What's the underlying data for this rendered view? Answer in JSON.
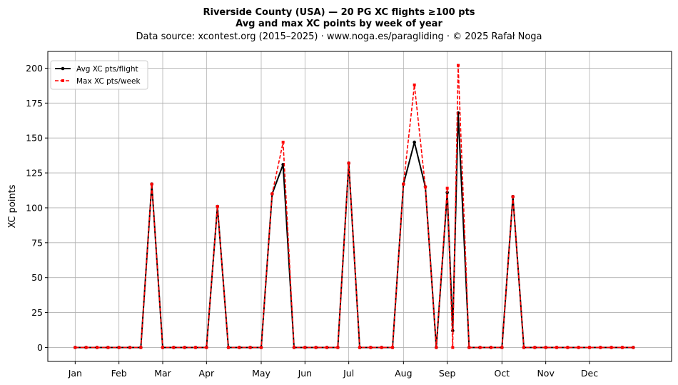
{
  "chart_data": {
    "type": "line",
    "title": "Riverside County (USA)  —  20 PG XC flights ≥100 pts",
    "subtitle": "Avg and max XC points by week of year",
    "source_note": "Data source: xcontest.org (2015–2025)  ·  www.noga.es/paragliding  ·  © 2025 Rafał Noga",
    "xlabel": "",
    "ylabel": "XC points",
    "ylim": [
      -10,
      212
    ],
    "xlim": [
      -2.5,
      54.5
    ],
    "yticks": [
      0,
      25,
      50,
      75,
      100,
      125,
      150,
      175,
      200
    ],
    "month_ticks": [
      {
        "label": "Jan",
        "week": 0
      },
      {
        "label": "Feb",
        "week": 4
      },
      {
        "label": "Mar",
        "week": 8
      },
      {
        "label": "Apr",
        "week": 12
      },
      {
        "label": "May",
        "week": 17
      },
      {
        "label": "Jun",
        "week": 21
      },
      {
        "label": "Jul",
        "week": 25
      },
      {
        "label": "Aug",
        "week": 30
      },
      {
        "label": "Sep",
        "week": 34
      },
      {
        "label": "Oct",
        "week": 39
      },
      {
        "label": "Nov",
        "week": 43
      },
      {
        "label": "Dec",
        "week": 47
      }
    ],
    "grid": true,
    "legend_position": "top-left",
    "weeks": [
      0,
      1,
      2,
      3,
      4,
      5,
      6,
      7,
      8,
      9,
      10,
      11,
      12,
      13,
      14,
      15,
      16,
      17,
      18,
      19,
      20,
      21,
      22,
      23,
      24,
      25,
      26,
      27,
      28,
      29,
      30,
      31,
      32,
      33,
      34,
      34.5,
      35,
      36,
      37,
      38,
      39,
      40,
      41,
      42,
      43,
      44,
      45,
      46,
      47,
      48,
      49,
      50,
      51
    ],
    "series": [
      {
        "name": "Avg XC pts/flight",
        "color": "#000000",
        "style": "solid",
        "marker": "circle",
        "values": [
          0,
          0,
          0,
          0,
          0,
          0,
          0,
          117,
          0,
          0,
          0,
          0,
          0,
          101,
          0,
          0,
          0,
          0,
          110,
          131,
          0,
          0,
          0,
          0,
          0,
          132,
          0,
          0,
          0,
          0,
          117,
          147,
          115,
          0,
          111,
          12,
          168,
          0,
          0,
          0,
          0,
          108,
          0,
          0,
          0,
          0,
          0,
          0,
          0,
          0,
          0,
          0,
          0
        ]
      },
      {
        "name": "Max XC pts/week",
        "color": "#ff0000",
        "style": "dashed",
        "marker": "square",
        "values": [
          0,
          0,
          0,
          0,
          0,
          0,
          0,
          117,
          0,
          0,
          0,
          0,
          0,
          101,
          0,
          0,
          0,
          0,
          110,
          147,
          0,
          0,
          0,
          0,
          0,
          132,
          0,
          0,
          0,
          0,
          117,
          188,
          115,
          0,
          114,
          0,
          202,
          0,
          0,
          0,
          0,
          108,
          0,
          0,
          0,
          0,
          0,
          0,
          0,
          0,
          0,
          0,
          0
        ]
      }
    ]
  }
}
